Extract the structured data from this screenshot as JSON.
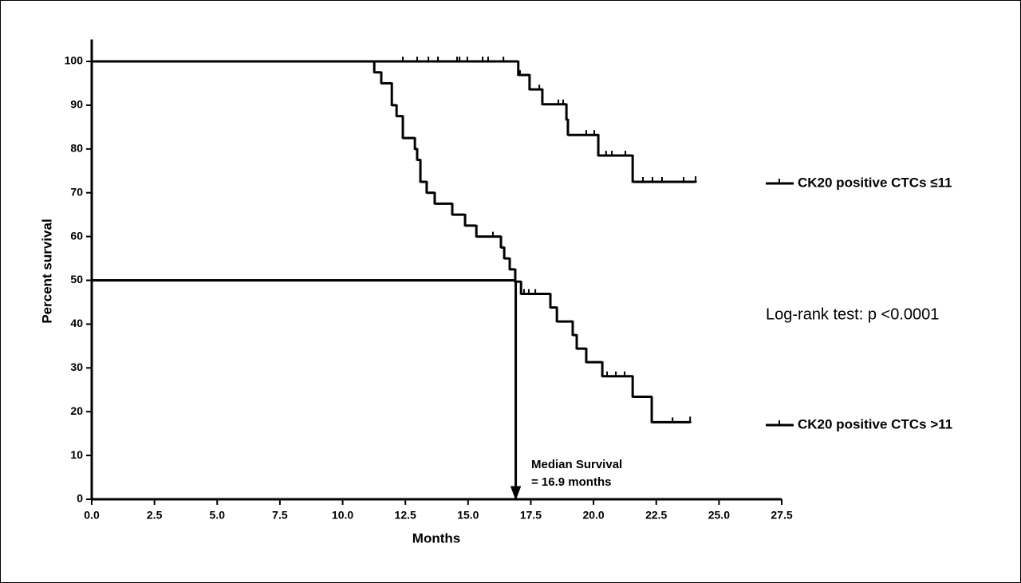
{
  "chart_data": {
    "type": "survival",
    "y_label": "Percent survival",
    "x_label": "Months",
    "xlim": [
      0,
      27.5
    ],
    "ylim": [
      0,
      105
    ],
    "xticks": [
      {
        "value": 0,
        "label": "0.0"
      },
      2.5,
      {
        "value": 5,
        "label": "5.0"
      },
      7.5,
      {
        "value": 10,
        "label": "10.0"
      },
      12.5,
      {
        "value": 15,
        "label": "15.0"
      },
      17.5,
      {
        "value": 20,
        "label": "20.0"
      },
      22.5,
      {
        "value": 25,
        "label": "25.0"
      },
      27.5
    ],
    "yticks": [
      0,
      10,
      20,
      30,
      40,
      50,
      60,
      70,
      80,
      90,
      100
    ],
    "series": [
      {
        "name": "CK20 positive CTCs ≤11",
        "color": "#000000",
        "x": [
          0,
          17.0,
          17.45,
          17.96,
          18.92,
          18.98,
          20.19,
          21.56,
          24.07
        ],
        "values": [
          100,
          96.9,
          93.6,
          90.2,
          86.7,
          83.2,
          78.5,
          72.5,
          72.5
        ],
        "censored_x": [
          12.4,
          12.97,
          13.42,
          13.8,
          14.56,
          14.66,
          14.97,
          15.58,
          15.8,
          16.41,
          17.07,
          17.84,
          18.6,
          18.79,
          19.71,
          20.03,
          20.5,
          20.73,
          21.27,
          21.97,
          22.35,
          22.73,
          23.59
        ],
        "censored_values": [
          100,
          100,
          100,
          100,
          100,
          100,
          100,
          100,
          100,
          100,
          96.9,
          93.6,
          90.2,
          90.2,
          83.2,
          83.2,
          78.5,
          78.5,
          78.5,
          72.5,
          72.5,
          72.5,
          72.5
        ]
      },
      {
        "name": "CK20 positive CTCs >11",
        "color": "#000000",
        "x": [
          0,
          11.26,
          11.54,
          11.96,
          12.15,
          12.4,
          12.88,
          12.97,
          13.1,
          13.35,
          13.67,
          14.37,
          14.88,
          15.33,
          16.31,
          16.44,
          16.66,
          16.88,
          17.11,
          18.28,
          18.54,
          19.17,
          19.33,
          19.71,
          20.35,
          21.56,
          22.32,
          23.85
        ],
        "values": [
          100,
          97.5,
          95,
          90,
          87.5,
          82.5,
          80,
          77.5,
          72.5,
          70,
          67.5,
          65,
          62.5,
          60,
          57.5,
          55,
          52.5,
          49.7,
          46.9,
          43.8,
          40.6,
          37.5,
          34.4,
          31.3,
          28.1,
          23.4,
          17.6,
          17.6
        ],
        "censored_x": [
          15.99,
          17.23,
          17.42,
          17.68,
          20.54,
          20.89,
          21.24,
          23.15
        ],
        "censored_values": [
          60,
          46.9,
          46.9,
          46.9,
          28.1,
          28.1,
          28.1,
          17.6
        ]
      }
    ],
    "median": {
      "x": 16.9,
      "y": 50
    },
    "annotations": [
      "Median Survival",
      "= 16.9 months",
      "Log-rank test: p <0.0001"
    ]
  }
}
